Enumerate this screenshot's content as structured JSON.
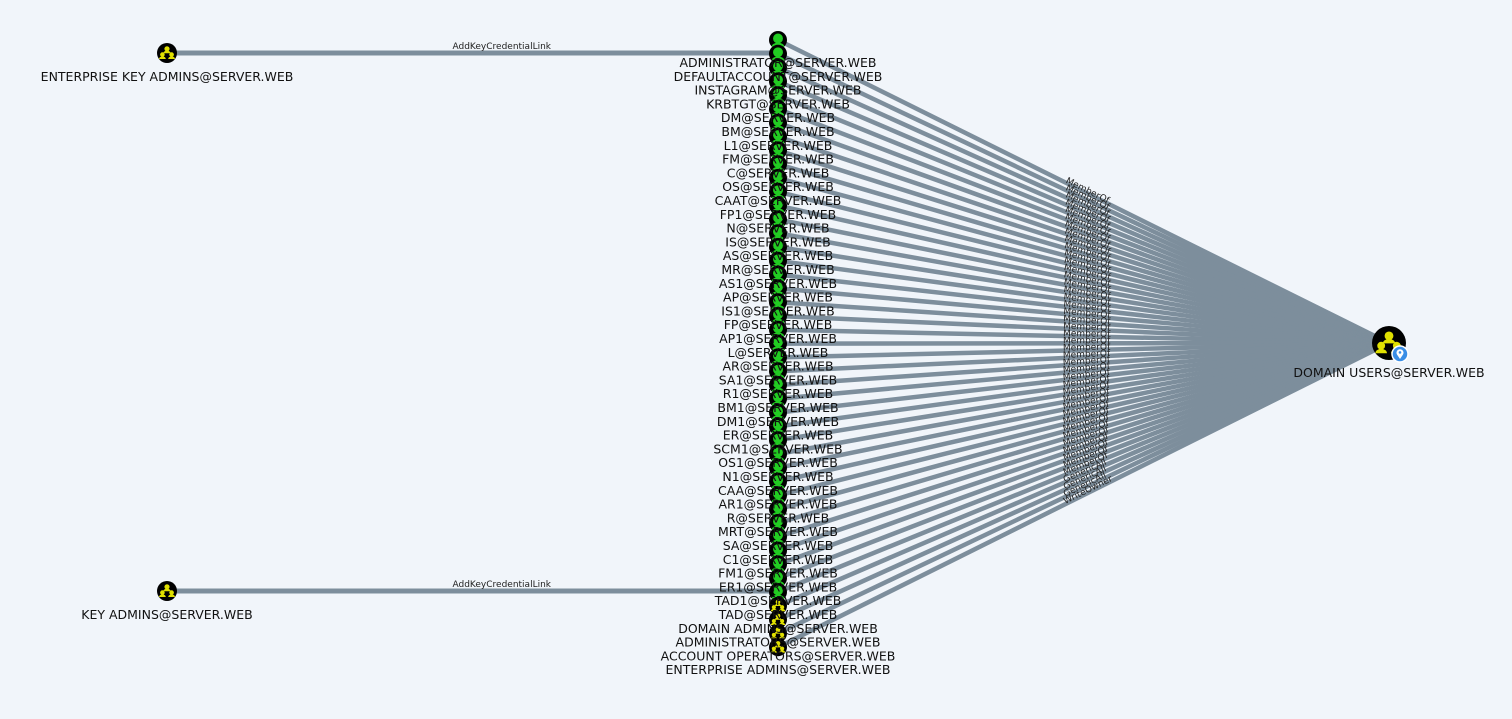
{
  "graph": {
    "source_groups": [
      {
        "id": "ekadmins",
        "label": "ENTERPRISE KEY ADMINS@SERVER.WEB",
        "edge_label": "AddKeyCredentialLink",
        "icon": "group-icon"
      },
      {
        "id": "kadmins",
        "label": "KEY ADMINS@SERVER.WEB",
        "edge_label": "AddKeyCredentialLink",
        "icon": "group-icon"
      }
    ],
    "target": {
      "id": "domainusers",
      "label": "DOMAIN USERS@SERVER.WEB",
      "icon": "group-icon",
      "badge": "location-pin-icon"
    },
    "member_nodes": [
      {
        "label": "ADMINISTRATOR@SERVER.WEB",
        "kind": "user",
        "edge": "MemberOf"
      },
      {
        "label": "DEFAULTACCOUNT@SERVER.WEB",
        "kind": "user",
        "edge": "MemberOf"
      },
      {
        "label": "INSTAGRAM@SERVER.WEB",
        "kind": "user",
        "edge": "MemberOf"
      },
      {
        "label": "KRBTGT@SERVER.WEB",
        "kind": "user",
        "edge": "MemberOf"
      },
      {
        "label": "DM@SERVER.WEB",
        "kind": "user",
        "edge": "MemberOf"
      },
      {
        "label": "BM@SERVER.WEB",
        "kind": "user",
        "edge": "MemberOf"
      },
      {
        "label": "L1@SERVER.WEB",
        "kind": "user",
        "edge": "MemberOf"
      },
      {
        "label": "FM@SERVER.WEB",
        "kind": "user",
        "edge": "MemberOf"
      },
      {
        "label": "C@SERVER.WEB",
        "kind": "user",
        "edge": "MemberOf"
      },
      {
        "label": "OS@SERVER.WEB",
        "kind": "user",
        "edge": "MemberOf"
      },
      {
        "label": "CAAT@SERVER.WEB",
        "kind": "user",
        "edge": "MemberOf"
      },
      {
        "label": "FP1@SERVER.WEB",
        "kind": "user",
        "edge": "MemberOf"
      },
      {
        "label": "N@SERVER.WEB",
        "kind": "user",
        "edge": "MemberOf"
      },
      {
        "label": "IS@SERVER.WEB",
        "kind": "user",
        "edge": "MemberOf"
      },
      {
        "label": "AS@SERVER.WEB",
        "kind": "user",
        "edge": "MemberOf"
      },
      {
        "label": "MR@SERVER.WEB",
        "kind": "user",
        "edge": "MemberOf"
      },
      {
        "label": "AS1@SERVER.WEB",
        "kind": "user",
        "edge": "MemberOf"
      },
      {
        "label": "AP@SERVER.WEB",
        "kind": "user",
        "edge": "MemberOf"
      },
      {
        "label": "IS1@SERVER.WEB",
        "kind": "user",
        "edge": "MemberOf"
      },
      {
        "label": "FP@SERVER.WEB",
        "kind": "user",
        "edge": "MemberOf"
      },
      {
        "label": "AP1@SERVER.WEB",
        "kind": "user",
        "edge": "MemberOf"
      },
      {
        "label": "L@SERVER.WEB",
        "kind": "user",
        "edge": "MemberOf"
      },
      {
        "label": "AR@SERVER.WEB",
        "kind": "user",
        "edge": "MemberOf"
      },
      {
        "label": "SA1@SERVER.WEB",
        "kind": "user",
        "edge": "MemberOf"
      },
      {
        "label": "R1@SERVER.WEB",
        "kind": "user",
        "edge": "MemberOf"
      },
      {
        "label": "BM1@SERVER.WEB",
        "kind": "user",
        "edge": "MemberOf"
      },
      {
        "label": "DM1@SERVER.WEB",
        "kind": "user",
        "edge": "MemberOf"
      },
      {
        "label": "ER@SERVER.WEB",
        "kind": "user",
        "edge": "MemberOf"
      },
      {
        "label": "SCM1@SERVER.WEB",
        "kind": "user",
        "edge": "MemberOf"
      },
      {
        "label": "OS1@SERVER.WEB",
        "kind": "user",
        "edge": "MemberOf"
      },
      {
        "label": "N1@SERVER.WEB",
        "kind": "user",
        "edge": "MemberOf"
      },
      {
        "label": "CAA@SERVER.WEB",
        "kind": "user",
        "edge": "MemberOf"
      },
      {
        "label": "AR1@SERVER.WEB",
        "kind": "user",
        "edge": "MemberOf"
      },
      {
        "label": "R@SERVER.WEB",
        "kind": "user",
        "edge": "MemberOf"
      },
      {
        "label": "MRT@SERVER.WEB",
        "kind": "user",
        "edge": "MemberOf"
      },
      {
        "label": "SA@SERVER.WEB",
        "kind": "user",
        "edge": "MemberOf"
      },
      {
        "label": "C1@SERVER.WEB",
        "kind": "user",
        "edge": "MemberOf"
      },
      {
        "label": "FM1@SERVER.WEB",
        "kind": "user",
        "edge": "MemberOf"
      },
      {
        "label": "ER1@SERVER.WEB",
        "kind": "user",
        "edge": "MemberOf"
      },
      {
        "label": "TAD1@SERVER.WEB",
        "kind": "user",
        "edge": "MemberOf"
      },
      {
        "label": "TAD@SERVER.WEB",
        "kind": "user",
        "edge": "MemberOf"
      },
      {
        "label": "DOMAIN ADMINS@SERVER.WEB",
        "kind": "group",
        "edge": "GenericAll"
      },
      {
        "label": "ADMINISTRATORS@SERVER.WEB",
        "kind": "group",
        "edge": "GenericAll"
      },
      {
        "label": "ACCOUNT OPERATORS@SERVER.WEB",
        "kind": "group",
        "edge": "GenericAll"
      },
      {
        "label": "ENTERPRISE ADMINS@SERVER.WEB",
        "kind": "group",
        "edge": "WriteOwner"
      }
    ]
  },
  "colors": {
    "background": "#f1f5fa",
    "edge": "#7d8e9c",
    "user_node": "#22cc22",
    "group_node": "#e0e000",
    "node_ring": "#000000",
    "badge": "#3a8ee6"
  }
}
